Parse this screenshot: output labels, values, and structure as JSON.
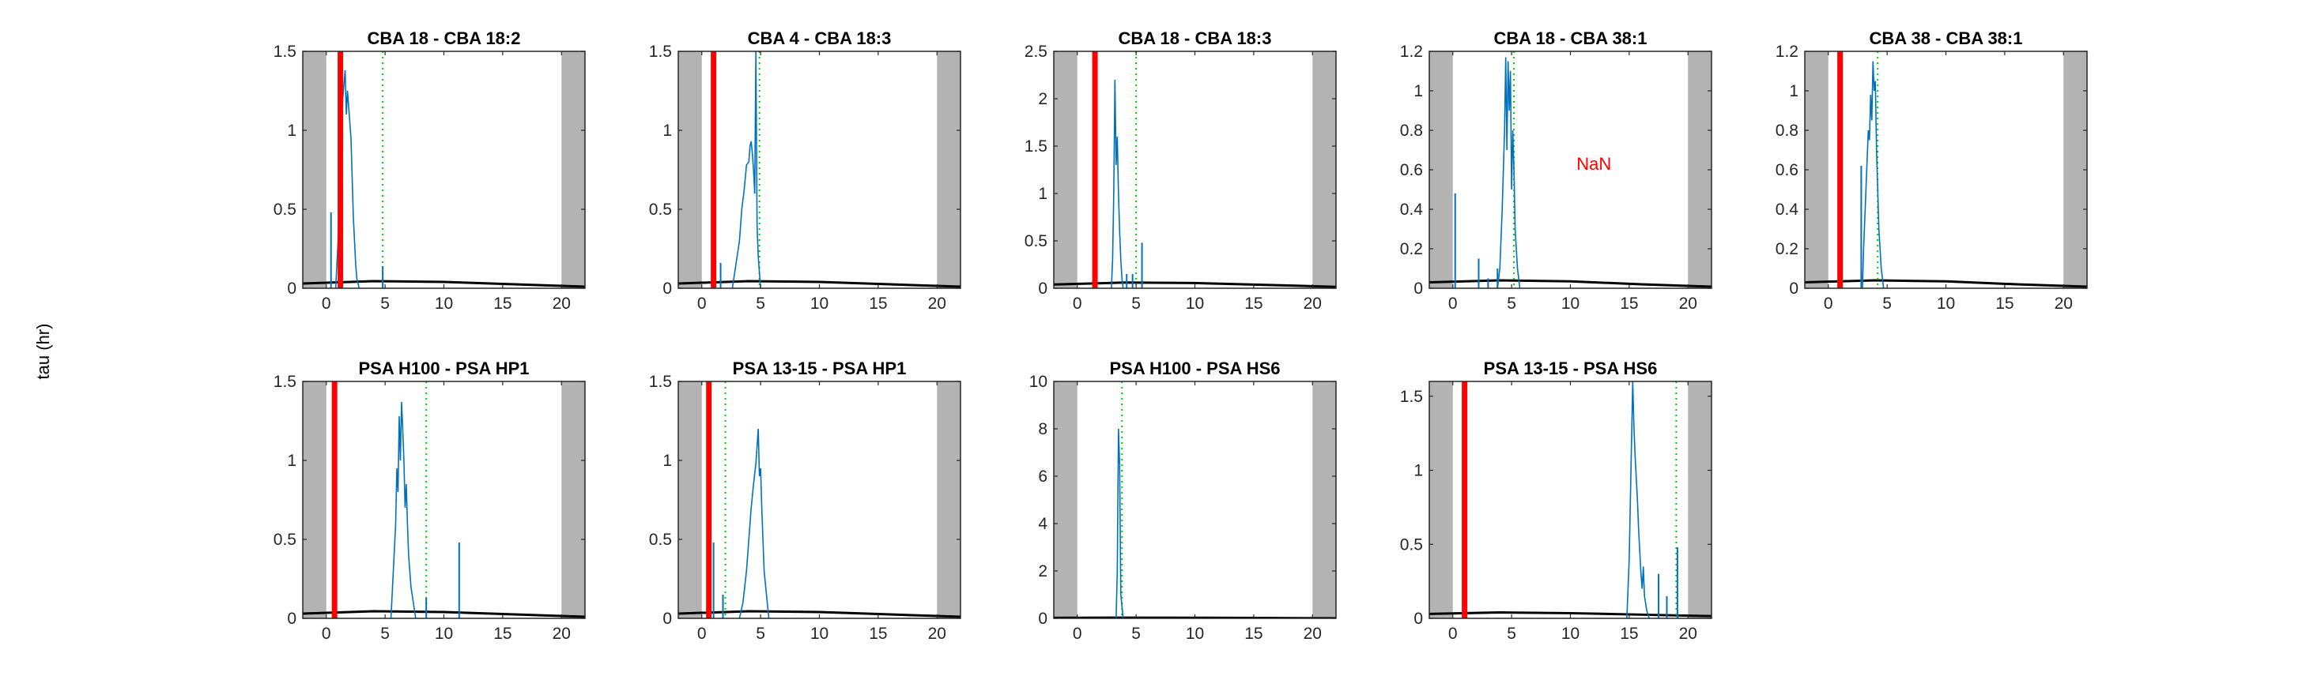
{
  "figure": {
    "ylabel": "tau (hr)"
  },
  "chart_data": [
    {
      "type": "line",
      "title": "CBA 18 - CBA 18:2",
      "xlim": [
        -2,
        22
      ],
      "ylim": [
        0,
        1.5
      ],
      "xticks": [
        0,
        5,
        10,
        15,
        20
      ],
      "yticks": [
        0,
        0.5,
        1,
        1.5
      ],
      "shaded_regions": [
        [
          -2,
          0
        ],
        [
          20,
          22
        ]
      ],
      "red_line_x": 1.2,
      "green_dotted_x": 4.8,
      "annotation": "",
      "spikes": [
        [
          0.4,
          0.48
        ],
        [
          4.8,
          0.14
        ]
      ],
      "series": [
        {
          "values": [
            [
              0.8,
              0
            ],
            [
              1.0,
              0.3
            ],
            [
              1.2,
              0.9
            ],
            [
              1.4,
              1.2
            ],
            [
              1.6,
              1.38
            ],
            [
              1.7,
              1.1
            ],
            [
              1.8,
              1.25
            ],
            [
              1.9,
              1.15
            ],
            [
              2.0,
              1.05
            ],
            [
              2.1,
              0.95
            ],
            [
              2.2,
              0.7
            ],
            [
              2.3,
              0.45
            ],
            [
              2.4,
              0.3
            ],
            [
              2.5,
              0.15
            ],
            [
              2.6,
              0.06
            ],
            [
              2.8,
              0
            ]
          ]
        }
      ],
      "baseline": [
        [
          -2,
          0.03
        ],
        [
          4,
          0.045
        ],
        [
          10,
          0.04
        ],
        [
          16,
          0.025
        ],
        [
          22,
          0.01
        ]
      ]
    },
    {
      "type": "line",
      "title": "CBA 4 - CBA 18:3",
      "xlim": [
        -2,
        22
      ],
      "ylim": [
        0,
        1.5
      ],
      "xticks": [
        0,
        5,
        10,
        15,
        20
      ],
      "yticks": [
        0,
        0.5,
        1,
        1.5
      ],
      "shaded_regions": [
        [
          -2,
          0
        ],
        [
          20,
          22
        ]
      ],
      "red_line_x": 1.0,
      "green_dotted_x": 4.9,
      "annotation": "",
      "spikes": [
        [
          1.6,
          0.16
        ]
      ],
      "series": [
        {
          "values": [
            [
              2.6,
              0
            ],
            [
              2.8,
              0.1
            ],
            [
              3.0,
              0.2
            ],
            [
              3.2,
              0.3
            ],
            [
              3.4,
              0.5
            ],
            [
              3.6,
              0.62
            ],
            [
              3.8,
              0.78
            ],
            [
              4.0,
              0.8
            ],
            [
              4.1,
              0.9
            ],
            [
              4.2,
              0.93
            ],
            [
              4.3,
              0.85
            ],
            [
              4.4,
              0.75
            ],
            [
              4.5,
              0.6
            ],
            [
              4.6,
              1.5
            ],
            [
              4.7,
              0.4
            ],
            [
              4.8,
              0.2
            ],
            [
              5.0,
              0
            ]
          ]
        }
      ],
      "baseline": [
        [
          -2,
          0.03
        ],
        [
          4,
          0.045
        ],
        [
          10,
          0.04
        ],
        [
          16,
          0.025
        ],
        [
          22,
          0.01
        ]
      ]
    },
    {
      "type": "line",
      "title": "CBA 18 - CBA 18:3",
      "xlim": [
        -2,
        22
      ],
      "ylim": [
        0,
        2.5
      ],
      "xticks": [
        0,
        5,
        10,
        15,
        20
      ],
      "yticks": [
        0,
        0.5,
        1,
        1.5,
        2,
        2.5
      ],
      "shaded_regions": [
        [
          -2,
          0
        ],
        [
          20,
          22
        ]
      ],
      "red_line_x": 1.5,
      "green_dotted_x": 5.0,
      "annotation": "",
      "spikes": [
        [
          4.2,
          0.15
        ],
        [
          4.7,
          0.15
        ],
        [
          5.5,
          0.48
        ]
      ],
      "series": [
        {
          "values": [
            [
              2.9,
              0
            ],
            [
              3.0,
              0.3
            ],
            [
              3.1,
              1.0
            ],
            [
              3.2,
              2.2
            ],
            [
              3.3,
              1.3
            ],
            [
              3.4,
              1.6
            ],
            [
              3.5,
              1.0
            ],
            [
              3.6,
              0.6
            ],
            [
              3.7,
              0.3
            ],
            [
              3.8,
              0.1
            ],
            [
              3.9,
              0
            ]
          ]
        }
      ],
      "baseline": [
        [
          -2,
          0.04
        ],
        [
          4,
          0.06
        ],
        [
          10,
          0.055
        ],
        [
          16,
          0.035
        ],
        [
          22,
          0.015
        ]
      ]
    },
    {
      "type": "line",
      "title": "CBA 18 - CBA 38:1",
      "xlim": [
        -2,
        22
      ],
      "ylim": [
        0,
        1.2
      ],
      "xticks": [
        0,
        5,
        10,
        15,
        20
      ],
      "yticks": [
        0,
        0.2,
        0.4,
        0.6,
        0.8,
        1,
        1.2
      ],
      "shaded_regions": [
        [
          -2,
          0
        ],
        [
          20,
          22
        ]
      ],
      "red_line_x": null,
      "green_dotted_x": 5.2,
      "annotation": "NaN",
      "annotation_x": 12,
      "annotation_y": 0.6,
      "spikes": [
        [
          0.2,
          0.48
        ],
        [
          2.2,
          0.15
        ],
        [
          3.8,
          0.1
        ],
        [
          3.0,
          0.05
        ]
      ],
      "series": [
        {
          "values": [
            [
              3.8,
              0
            ],
            [
              4.0,
              0.1
            ],
            [
              4.2,
              0.4
            ],
            [
              4.4,
              0.8
            ],
            [
              4.5,
              1.17
            ],
            [
              4.6,
              0.7
            ],
            [
              4.7,
              1.15
            ],
            [
              4.8,
              0.9
            ],
            [
              4.9,
              1.1
            ],
            [
              5.0,
              0.5
            ],
            [
              5.1,
              0.8
            ],
            [
              5.2,
              0.6
            ],
            [
              5.3,
              0.3
            ],
            [
              5.5,
              0.1
            ],
            [
              5.7,
              0
            ]
          ]
        }
      ],
      "baseline": [
        [
          -2,
          0.03
        ],
        [
          4,
          0.04
        ],
        [
          10,
          0.035
        ],
        [
          16,
          0.02
        ],
        [
          22,
          0.008
        ]
      ]
    },
    {
      "type": "line",
      "title": "CBA 38 - CBA 38:1",
      "xlim": [
        -2,
        22
      ],
      "ylim": [
        0,
        1.2
      ],
      "xticks": [
        0,
        5,
        10,
        15,
        20
      ],
      "yticks": [
        0,
        0.2,
        0.4,
        0.6,
        0.8,
        1,
        1.2
      ],
      "shaded_regions": [
        [
          -2,
          0
        ],
        [
          20,
          22
        ]
      ],
      "red_line_x": 1.0,
      "green_dotted_x": 4.2,
      "annotation": "",
      "spikes": [
        [
          2.8,
          0.62
        ]
      ],
      "series": [
        {
          "values": [
            [
              2.9,
              0
            ],
            [
              3.0,
              0.2
            ],
            [
              3.2,
              0.5
            ],
            [
              3.4,
              0.8
            ],
            [
              3.5,
              0.75
            ],
            [
              3.6,
              0.98
            ],
            [
              3.7,
              0.85
            ],
            [
              3.8,
              1.15
            ],
            [
              3.9,
              1.0
            ],
            [
              4.0,
              1.05
            ],
            [
              4.1,
              0.7
            ],
            [
              4.2,
              0.5
            ],
            [
              4.3,
              0.3
            ],
            [
              4.5,
              0.1
            ],
            [
              4.7,
              0
            ]
          ]
        }
      ],
      "baseline": [
        [
          -2,
          0.03
        ],
        [
          4,
          0.04
        ],
        [
          10,
          0.035
        ],
        [
          16,
          0.02
        ],
        [
          22,
          0.008
        ]
      ]
    },
    {
      "type": "line",
      "title": "PSA H100 - PSA HP1",
      "xlim": [
        -2,
        22
      ],
      "ylim": [
        0,
        1.5
      ],
      "xticks": [
        0,
        5,
        10,
        15,
        20
      ],
      "yticks": [
        0,
        0.5,
        1,
        1.5
      ],
      "shaded_regions": [
        [
          -2,
          0
        ],
        [
          20,
          22
        ]
      ],
      "red_line_x": 0.7,
      "green_dotted_x": 8.5,
      "annotation": "",
      "spikes": [
        [
          8.5,
          0.13
        ],
        [
          11.3,
          0.48
        ]
      ],
      "series": [
        {
          "values": [
            [
              5.5,
              0
            ],
            [
              5.7,
              0.3
            ],
            [
              5.9,
              0.6
            ],
            [
              6.0,
              0.95
            ],
            [
              6.1,
              0.8
            ],
            [
              6.2,
              1.28
            ],
            [
              6.3,
              1.0
            ],
            [
              6.4,
              1.37
            ],
            [
              6.5,
              1.2
            ],
            [
              6.6,
              1.0
            ],
            [
              6.7,
              0.7
            ],
            [
              6.8,
              0.85
            ],
            [
              6.9,
              0.6
            ],
            [
              7.0,
              0.4
            ],
            [
              7.2,
              0.2
            ],
            [
              7.4,
              0.1
            ],
            [
              7.6,
              0
            ]
          ]
        }
      ],
      "baseline": [
        [
          -2,
          0.03
        ],
        [
          4,
          0.045
        ],
        [
          10,
          0.04
        ],
        [
          16,
          0.025
        ],
        [
          22,
          0.01
        ]
      ]
    },
    {
      "type": "line",
      "title": "PSA 13-15 - PSA HP1",
      "xlim": [
        -2,
        22
      ],
      "ylim": [
        0,
        1.5
      ],
      "xticks": [
        0,
        5,
        10,
        15,
        20
      ],
      "yticks": [
        0,
        0.5,
        1,
        1.5
      ],
      "shaded_regions": [
        [
          -2,
          0
        ],
        [
          20,
          22
        ]
      ],
      "red_line_x": 0.6,
      "green_dotted_x": 2.0,
      "annotation": "",
      "spikes": [
        [
          1.0,
          0.48
        ],
        [
          1.8,
          0.15
        ]
      ],
      "series": [
        {
          "values": [
            [
              3.2,
              0
            ],
            [
              3.5,
              0.1
            ],
            [
              3.8,
              0.3
            ],
            [
              4.0,
              0.5
            ],
            [
              4.2,
              0.7
            ],
            [
              4.4,
              0.85
            ],
            [
              4.6,
              0.98
            ],
            [
              4.8,
              1.2
            ],
            [
              4.9,
              0.9
            ],
            [
              5.0,
              0.95
            ],
            [
              5.1,
              0.7
            ],
            [
              5.2,
              0.5
            ],
            [
              5.3,
              0.3
            ],
            [
              5.5,
              0.15
            ],
            [
              5.7,
              0
            ]
          ]
        }
      ],
      "baseline": [
        [
          -2,
          0.03
        ],
        [
          4,
          0.045
        ],
        [
          10,
          0.04
        ],
        [
          16,
          0.025
        ],
        [
          22,
          0.01
        ]
      ]
    },
    {
      "type": "line",
      "title": "PSA H100 - PSA HS6",
      "xlim": [
        -2,
        22
      ],
      "ylim": [
        0,
        10
      ],
      "xticks": [
        0,
        5,
        10,
        15,
        20
      ],
      "yticks": [
        0,
        2,
        4,
        6,
        8,
        10
      ],
      "shaded_regions": [
        [
          -2,
          0
        ],
        [
          20,
          22
        ]
      ],
      "red_line_x": null,
      "green_dotted_x": 3.8,
      "annotation": "",
      "spikes": [],
      "series": [
        {
          "values": [
            [
              3.3,
              0
            ],
            [
              3.4,
              2.0
            ],
            [
              3.5,
              8.0
            ],
            [
              3.6,
              6.5
            ],
            [
              3.7,
              1.0
            ],
            [
              3.8,
              0.5
            ],
            [
              3.9,
              0
            ]
          ]
        }
      ],
      "baseline": [
        [
          -2,
          0.02
        ],
        [
          4,
          0.03
        ],
        [
          10,
          0.025
        ],
        [
          16,
          0.015
        ],
        [
          22,
          0.005
        ]
      ]
    },
    {
      "type": "line",
      "title": "PSA 13-15 - PSA HS6",
      "xlim": [
        -2,
        22
      ],
      "ylim": [
        0,
        1.6
      ],
      "xticks": [
        0,
        5,
        10,
        15,
        20
      ],
      "yticks": [
        0,
        0.5,
        1,
        1.5
      ],
      "shaded_regions": [
        [
          -2,
          0
        ],
        [
          20,
          22
        ]
      ],
      "red_line_x": 1.0,
      "green_dotted_x": 19.0,
      "annotation": "",
      "spikes": [
        [
          17.5,
          0.3
        ],
        [
          18.2,
          0.15
        ],
        [
          19.1,
          0.48
        ]
      ],
      "series": [
        {
          "values": [
            [
              14.8,
              0
            ],
            [
              15.0,
              0.4
            ],
            [
              15.2,
              1.2
            ],
            [
              15.3,
              1.6
            ],
            [
              15.4,
              1.3
            ],
            [
              15.5,
              1.1
            ],
            [
              15.6,
              0.95
            ],
            [
              15.7,
              0.8
            ],
            [
              15.8,
              0.6
            ],
            [
              15.9,
              0.45
            ],
            [
              16.0,
              0.3
            ],
            [
              16.1,
              0.2
            ],
            [
              16.2,
              0.35
            ],
            [
              16.3,
              0.15
            ],
            [
              16.5,
              0.05
            ],
            [
              16.7,
              0
            ]
          ]
        }
      ],
      "baseline": [
        [
          -2,
          0.03
        ],
        [
          4,
          0.04
        ],
        [
          10,
          0.035
        ],
        [
          16,
          0.025
        ],
        [
          22,
          0.015
        ]
      ]
    }
  ]
}
